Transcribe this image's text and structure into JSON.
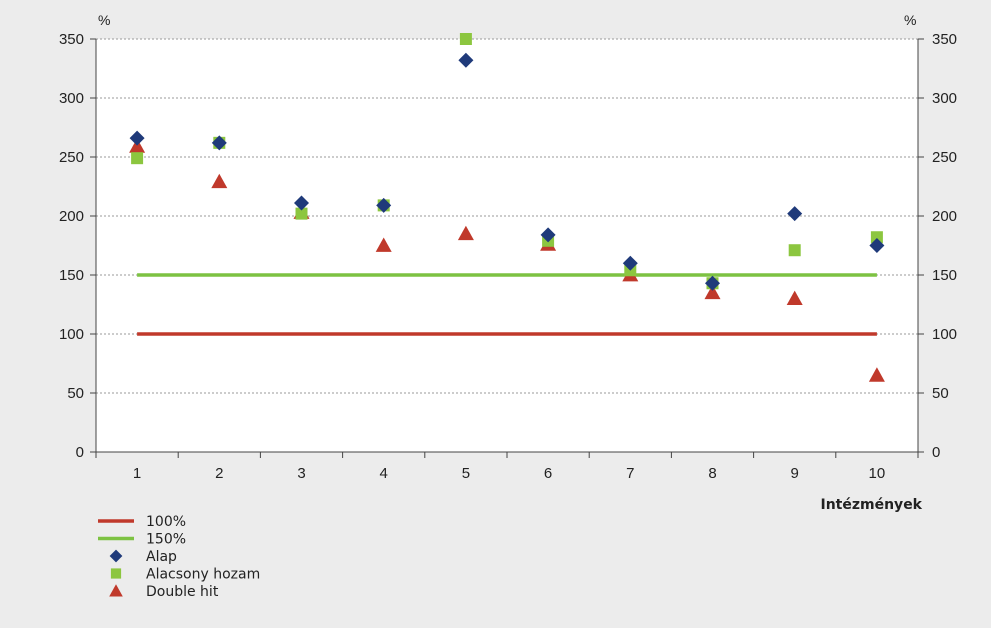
{
  "chart_data": {
    "type": "scatter",
    "x_unit_left": "%",
    "y_unit_right": "%",
    "xlabel": "Intézmények",
    "categories": [
      "1",
      "2",
      "3",
      "4",
      "5",
      "6",
      "7",
      "8",
      "9",
      "10"
    ],
    "ylim": [
      0,
      350
    ],
    "yticks": [
      "0",
      "50",
      "100",
      "150",
      "200",
      "250",
      "300",
      "350"
    ],
    "grid": "horizontal dotted",
    "legend_position": "bottom-left",
    "reference_lines": [
      {
        "name": "100%",
        "value": 100,
        "color": "#c0392b",
        "from_category": 1,
        "to_category": 10
      },
      {
        "name": "150%",
        "value": 150,
        "color": "#7dc242",
        "from_category": 1,
        "to_category": 10
      }
    ],
    "series": [
      {
        "name": "Alap",
        "marker": "diamond",
        "color": "#1f3a7a",
        "values": [
          266,
          262,
          211,
          209,
          332,
          184,
          160,
          143,
          202,
          175
        ]
      },
      {
        "name": "Alacsony hozam",
        "marker": "square",
        "color": "#8cc63f",
        "values": [
          249,
          262,
          202,
          209,
          350,
          179,
          154,
          143,
          171,
          182
        ]
      },
      {
        "name": "Double hit",
        "marker": "triangle",
        "color": "#c0392b",
        "values": [
          259,
          229,
          203,
          175,
          185,
          176,
          150,
          135,
          130,
          65
        ]
      }
    ]
  }
}
